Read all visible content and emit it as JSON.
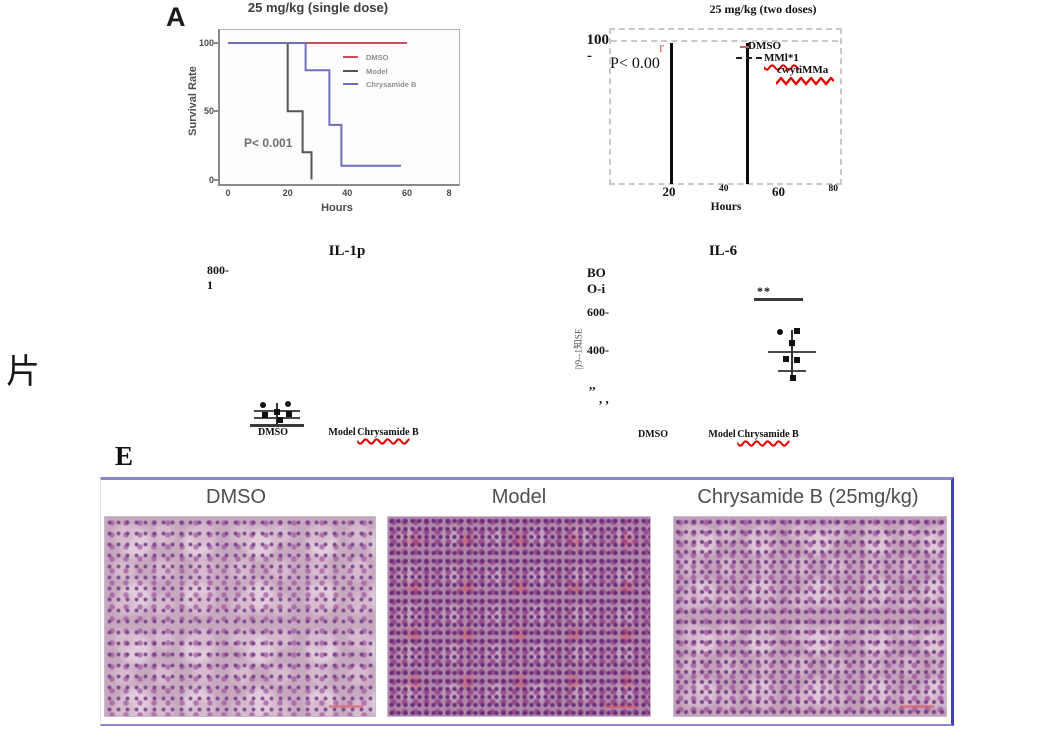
{
  "page": {
    "side_char": "片",
    "panel_a_label": "A",
    "panel_e_label": "E"
  },
  "chart_data": [
    {
      "id": "survival_single_dose",
      "type": "line",
      "title": "25 mg/kg (single dose)",
      "xlabel": "Hours",
      "ylabel": "Survival Rate",
      "xlim": [
        0,
        80
      ],
      "ylim": [
        0,
        100
      ],
      "xticks": [
        0,
        20,
        40,
        60
      ],
      "xtick_partial": "8",
      "yticks": [
        100,
        50,
        0
      ],
      "annotation": "P< 0.001",
      "grid": false,
      "legend_position": "inside upper right",
      "series": [
        {
          "name": "DMSO",
          "color": "#c9505a",
          "steps": [
            [
              0,
              100
            ],
            [
              60,
              100
            ]
          ]
        },
        {
          "name": "Model",
          "color": "#555555",
          "steps": [
            [
              0,
              100
            ],
            [
              20,
              100
            ],
            [
              20,
              50
            ],
            [
              25,
              50
            ],
            [
              25,
              20
            ],
            [
              28,
              20
            ],
            [
              28,
              0
            ]
          ]
        },
        {
          "name": "Chrysamide B",
          "color": "#6f6fb8",
          "steps": [
            [
              0,
              100
            ],
            [
              26,
              100
            ],
            [
              26,
              80
            ],
            [
              34,
              80
            ],
            [
              34,
              40
            ],
            [
              38,
              40
            ],
            [
              38,
              10
            ],
            [
              58,
              10
            ]
          ]
        }
      ]
    },
    {
      "id": "survival_two_doses_broken_render",
      "type": "line",
      "title": "25 mg/kg (two doses)",
      "xlabel": "Hours",
      "xticks": [
        20,
        40,
        60,
        80
      ],
      "ytick_top": "100",
      "ytick_dash": "-",
      "annotation": "P< 0.00",
      "stray_char": "r",
      "curve_lines_hours": [
        21,
        48.5
      ],
      "legend": [
        {
          "label": "DMSO",
          "prefix": "solid",
          "spellcheck": false
        },
        {
          "label": "MMl*1",
          "prefix": "dashed",
          "spellcheck": true
        },
        {
          "label": "cwytiMMa",
          "prefix": "none",
          "spellcheck": true
        }
      ]
    },
    {
      "id": "il1b_scatter",
      "type": "scatter",
      "title": "IL-1p",
      "ytick_labels": [
        "800-",
        "1"
      ],
      "ymax": 800,
      "categories": [
        "DMSO",
        "Model",
        "Chrysamide B"
      ],
      "spellchecked_category": "Chrysamide",
      "points": {
        "group": "DMSO",
        "values": [
          99,
          104,
          62,
          52,
          47,
          21
        ],
        "dx": [
          -14,
          11,
          0,
          12,
          -12,
          3
        ],
        "markers": [
          "circle",
          "circle",
          "square",
          "square",
          "square",
          "square"
        ]
      },
      "mean_lines": [
        73,
        36
      ]
    },
    {
      "id": "il6_scatter",
      "type": "scatter",
      "title": "IL-6",
      "ytick_labels": [
        "BO",
        "O-i",
        "600-",
        "400-",
        ",,",
        ", ,"
      ],
      "side_label": "|)9--1知SE",
      "ymax": 800,
      "categories": [
        "DMSO",
        "Model",
        "Chrysamide B"
      ],
      "spellchecked_category": "Chrysamide",
      "significance": "**",
      "points": {
        "group": "Chrysamide B",
        "values": [
          495,
          500,
          437,
          353,
          347,
          253
        ],
        "dx": [
          -12,
          5,
          0,
          -6,
          5,
          1
        ],
        "markers": [
          "circle",
          "square",
          "square",
          "square",
          "square",
          "square"
        ]
      },
      "mean_lines": [
        395,
        295
      ]
    }
  ],
  "panel_e": {
    "headers": [
      "DMSO",
      "Model",
      "Chrysamide B (25mg/kg)"
    ]
  }
}
